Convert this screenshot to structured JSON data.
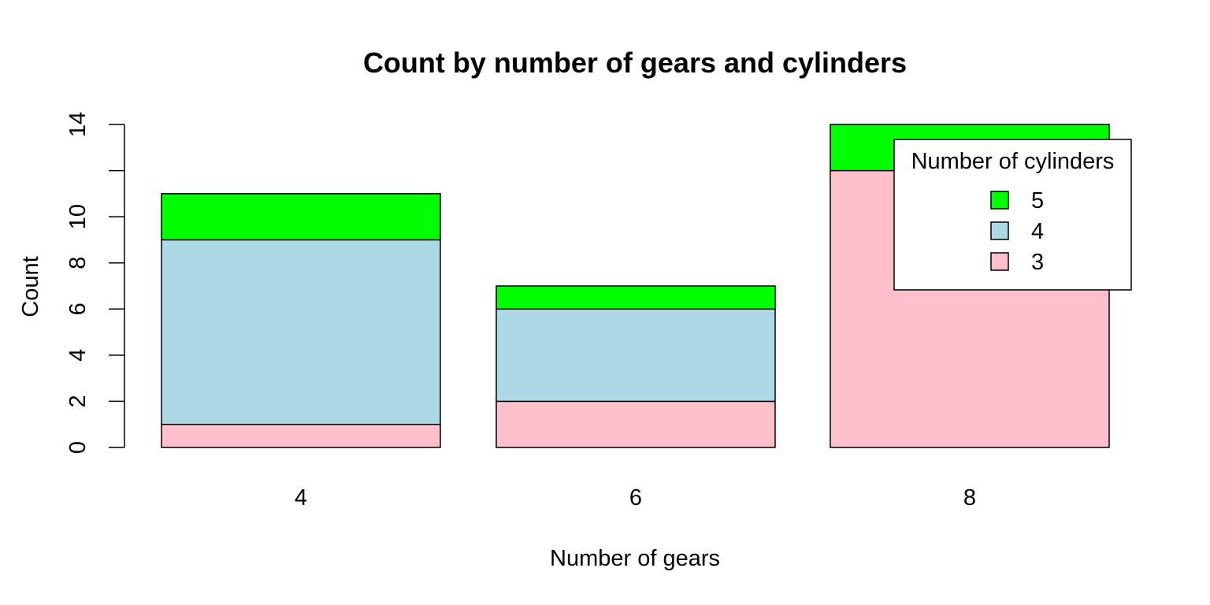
{
  "chart_data": {
    "type": "bar",
    "stacked": true,
    "title": "Count by number of gears and cylinders",
    "xlabel": "Number of gears",
    "ylabel": "Count",
    "categories": [
      "4",
      "6",
      "8"
    ],
    "series": [
      {
        "name": "3",
        "values": [
          1,
          2,
          12
        ],
        "color": "#FFC0CB"
      },
      {
        "name": "4",
        "values": [
          8,
          4,
          0
        ],
        "color": "#ADD8E6"
      },
      {
        "name": "5",
        "values": [
          2,
          1,
          2
        ],
        "color": "#00FF00"
      }
    ],
    "ylim": [
      0,
      14
    ],
    "yticks": [
      0,
      2,
      4,
      6,
      8,
      10,
      12,
      14
    ],
    "ytick_labels": [
      "0",
      "2",
      "4",
      "6",
      "8",
      "10",
      "",
      "14"
    ],
    "grid": false,
    "legend": {
      "title": "Number of cylinders",
      "placement": "top-right",
      "order": [
        "5",
        "4",
        "3"
      ]
    }
  }
}
